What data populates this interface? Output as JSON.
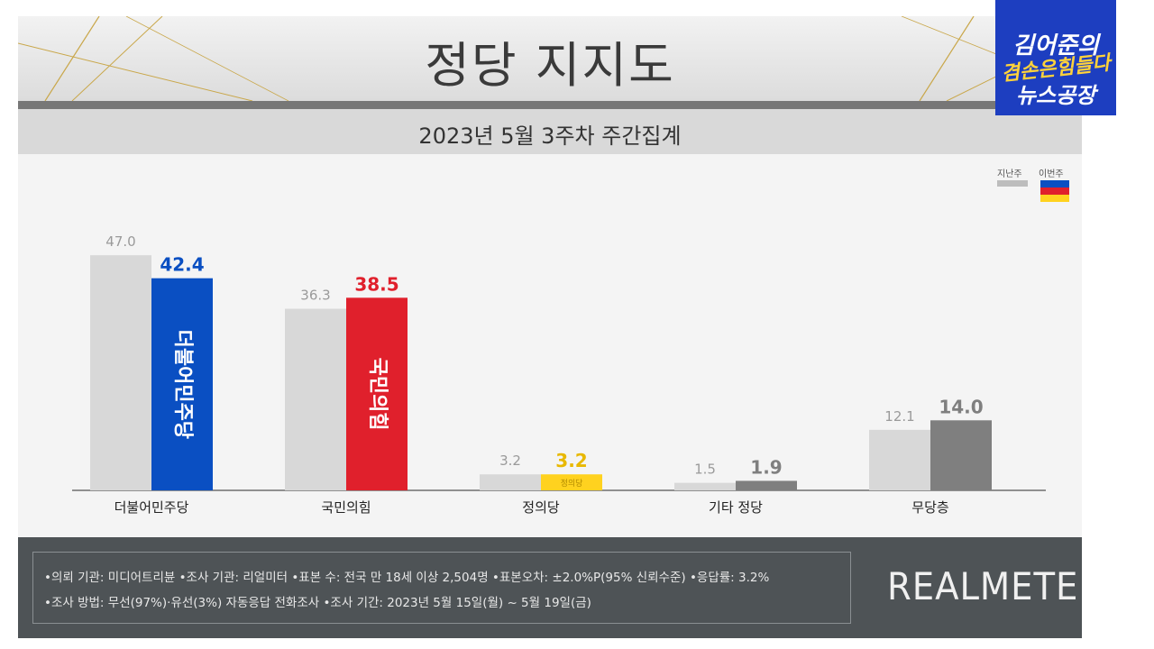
{
  "header": {
    "title": "정당 지지도",
    "subtitle": "2023년 5월 3주차 주간집계"
  },
  "legend": {
    "previous": "지난주",
    "current": "이번주"
  },
  "chart_data": {
    "type": "bar",
    "title": "정당 지지도",
    "subtitle": "2023년 5월 3주차 주간집계",
    "categories": [
      "더불어민주당",
      "국민의힘",
      "정의당",
      "기타 정당",
      "무당층"
    ],
    "series": [
      {
        "name": "지난주",
        "values": [
          47.0,
          36.3,
          3.2,
          1.5,
          12.1
        ],
        "color": "#d8d8d8"
      },
      {
        "name": "이번주",
        "values": [
          42.4,
          38.5,
          3.2,
          1.9,
          14.0
        ],
        "colors": [
          "#0a4fc2",
          "#e0202c",
          "#ffd21f",
          "#7f7f7f",
          "#7f7f7f"
        ]
      }
    ],
    "value_labels": {
      "previous": [
        "47.0",
        "36.3",
        "3.2",
        "1.5",
        "12.1"
      ],
      "current": [
        "42.4",
        "38.5",
        "3.2",
        "1.9",
        "14.0"
      ]
    },
    "current_label_colors": [
      "#0a4fc2",
      "#e0202c",
      "#e8b800",
      "#7f7f7f",
      "#7f7f7f"
    ],
    "bar_inner_labels": [
      "더불어민주당",
      "국민의힘",
      "정의당",
      "",
      ""
    ],
    "ylim": [
      0,
      50
    ],
    "grid": false,
    "legend_position": "top-right"
  },
  "footer": {
    "note1": "•의뢰 기관: 미디어트리뷴  •조사 기관: 리얼미터  •표본 수: 전국 만 18세 이상 2,504명  •표본오차: ±2.0%P(95% 신뢰수준)  •응답률: 3.2%",
    "note2": "•조사 방법: 무선(97%)·유선(3%) 자동응답 전화조사  •조사 기간: 2023년 5월 15일(월) ~ 5월 19일(금)",
    "brand": "REALMETER"
  },
  "logo": {
    "line1": "김어준의",
    "line2": "겸손은힘들다",
    "line3": "뉴스공장"
  },
  "colors": {
    "accent_blue": "#0a4fc2",
    "accent_red": "#e0202c",
    "accent_yellow": "#ffd21f",
    "footer_bg": "#4e5356"
  }
}
